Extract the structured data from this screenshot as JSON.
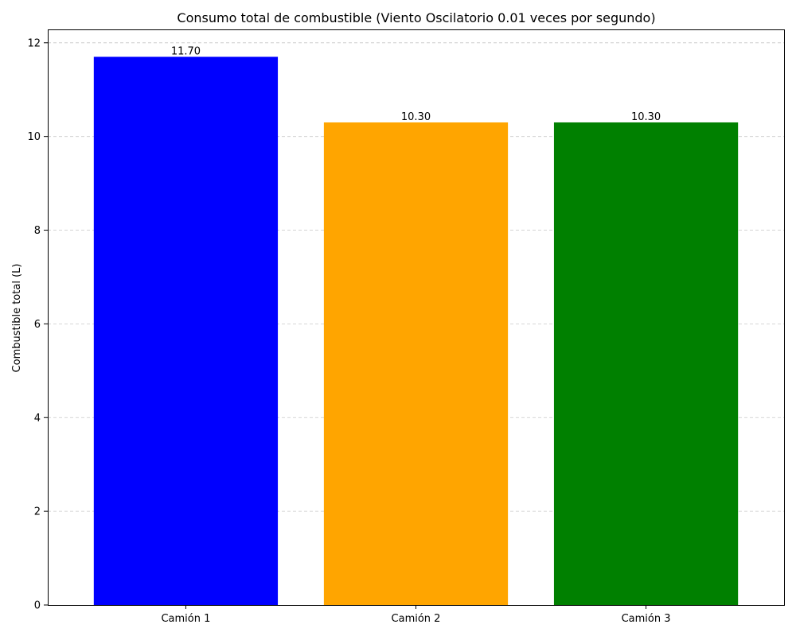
{
  "chart_data": {
    "type": "bar",
    "title": "Consumo total de combustible (Viento Oscilatorio 0.01 veces por segundo)",
    "xlabel": "",
    "ylabel": "Combustible total (L)",
    "categories": [
      "Camión 1",
      "Camión 2",
      "Camión 3"
    ],
    "values": [
      11.7,
      10.3,
      10.3
    ],
    "value_labels": [
      "11.70",
      "10.30",
      "10.30"
    ],
    "colors": [
      "#0000ff",
      "#ffa500",
      "#008000"
    ],
    "ylim": [
      0,
      12.285
    ],
    "yticks": [
      0,
      2,
      4,
      6,
      8,
      10,
      12
    ],
    "grid": "y-dashed",
    "legend": "none"
  }
}
